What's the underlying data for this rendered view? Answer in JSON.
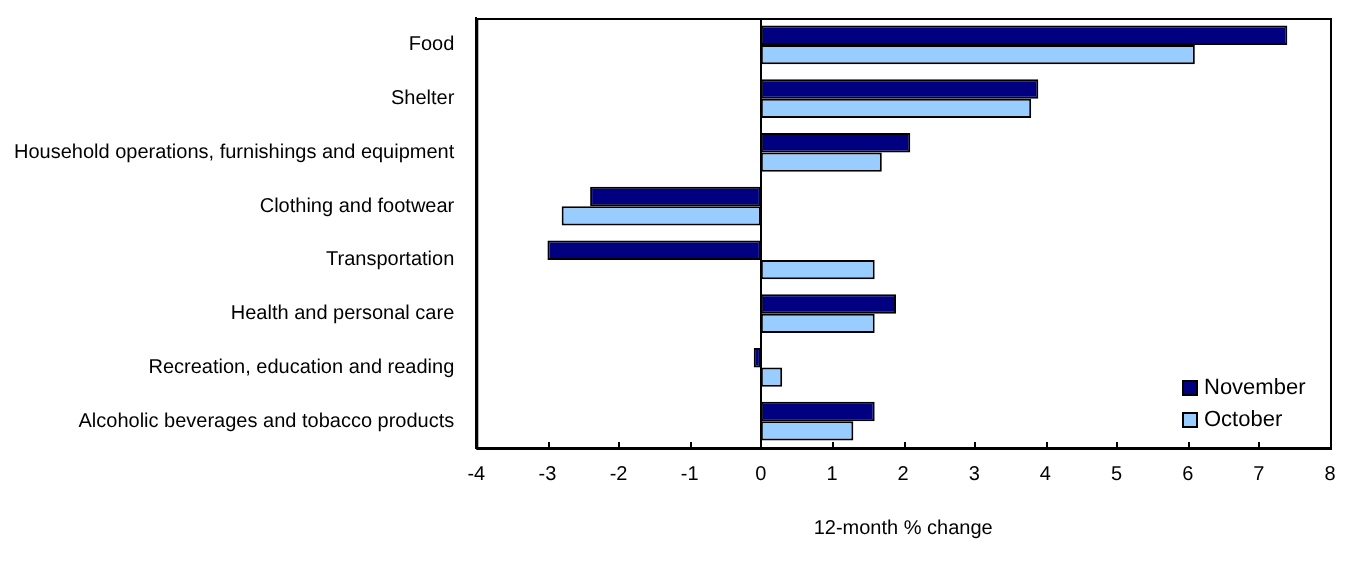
{
  "chart_data": {
    "type": "bar",
    "orientation": "horizontal",
    "xlabel": "12-month % change",
    "categories": [
      "Food",
      "Shelter",
      "Household operations, furnishings and equipment",
      "Clothing and footwear",
      "Transportation",
      "Health and personal care",
      "Recreation, education and reading",
      "Alcoholic beverages and tobacco products"
    ],
    "series": [
      {
        "name": "November",
        "color": "#000080",
        "values": [
          7.4,
          3.9,
          2.1,
          -2.4,
          -3.0,
          1.9,
          -0.1,
          1.6
        ]
      },
      {
        "name": "October",
        "color": "#99ccff",
        "values": [
          6.1,
          3.8,
          1.7,
          -2.8,
          1.6,
          1.6,
          0.3,
          1.3
        ]
      }
    ],
    "xlim": [
      -4,
      8
    ],
    "xticks": [
      -4,
      -3,
      -2,
      -1,
      0,
      1,
      2,
      3,
      4,
      5,
      6,
      7,
      8
    ],
    "legend": "bottom right"
  }
}
